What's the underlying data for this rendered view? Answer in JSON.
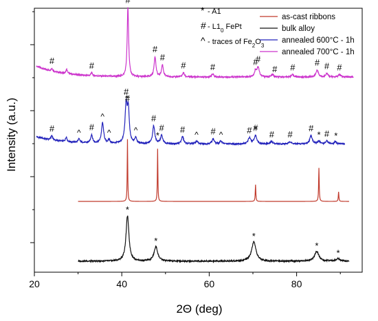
{
  "chart_data": {
    "type": "line",
    "xlabel": "2Θ (deg)",
    "ylabel": "Intensity (a.u.)",
    "xlim": [
      20,
      95
    ],
    "xticks": [
      20,
      40,
      60,
      80
    ],
    "xminor": [
      30,
      50,
      70,
      90
    ],
    "y_tick_count": 4,
    "grid": false,
    "legend_position": "top-right",
    "series": [
      {
        "name": "annealed 700°C - 1h",
        "color": "#cc33cc",
        "offset": 0.77,
        "x_range": [
          20.5,
          93
        ],
        "baseline": 0.045,
        "peaks": [
          [
            24.0,
            0.012,
            0.2
          ],
          [
            27.4,
            0.018,
            0.2
          ],
          [
            33.1,
            0.012,
            0.2
          ],
          [
            41.4,
            0.29,
            0.2
          ],
          [
            47.6,
            0.085,
            0.25
          ],
          [
            49.3,
            0.05,
            0.25
          ],
          [
            54.1,
            0.018,
            0.25
          ],
          [
            60.8,
            0.012,
            0.3
          ],
          [
            70.6,
            0.025,
            0.3
          ],
          [
            71.2,
            0.04,
            0.3
          ],
          [
            74.5,
            0.01,
            0.3
          ],
          [
            79.1,
            0.01,
            0.3
          ],
          [
            84.7,
            0.03,
            0.3
          ],
          [
            86.9,
            0.015,
            0.3
          ],
          [
            89.8,
            0.01,
            0.3
          ]
        ]
      },
      {
        "name": "annealed 600°C - 1h",
        "color": "#2222bb",
        "offset": 0.49,
        "x_range": [
          20.5,
          91
        ],
        "baseline": 0.03,
        "peaks": [
          [
            24.0,
            0.018,
            0.25
          ],
          [
            27.3,
            0.02,
            0.2
          ],
          [
            30.2,
            0.015,
            0.25
          ],
          [
            33.1,
            0.035,
            0.25
          ],
          [
            35.6,
            0.085,
            0.3
          ],
          [
            37.1,
            0.015,
            0.25
          ],
          [
            41.0,
            0.16,
            0.3
          ],
          [
            41.5,
            0.13,
            0.25
          ],
          [
            43.2,
            0.025,
            0.25
          ],
          [
            47.3,
            0.075,
            0.3
          ],
          [
            49.1,
            0.035,
            0.3
          ],
          [
            53.9,
            0.03,
            0.3
          ],
          [
            57.1,
            0.012,
            0.3
          ],
          [
            60.9,
            0.022,
            0.3
          ],
          [
            62.7,
            0.012,
            0.3
          ],
          [
            69.2,
            0.025,
            0.35
          ],
          [
            70.6,
            0.035,
            0.35
          ],
          [
            74.3,
            0.01,
            0.3
          ],
          [
            78.5,
            0.01,
            0.3
          ],
          [
            83.3,
            0.035,
            0.35
          ],
          [
            85.1,
            0.012,
            0.3
          ],
          [
            86.9,
            0.012,
            0.3
          ],
          [
            88.9,
            0.01,
            0.3
          ]
        ]
      },
      {
        "name": "as-cast ribbons",
        "color": "#c0392b",
        "offset": 0.25,
        "x_range": [
          30,
          92
        ],
        "baseline": 0.0,
        "peaks": [
          [
            41.3,
            0.26,
            0.07
          ],
          [
            48.2,
            0.22,
            0.07
          ],
          [
            70.6,
            0.07,
            0.08
          ],
          [
            85.1,
            0.14,
            0.08
          ],
          [
            89.6,
            0.04,
            0.08
          ]
        ]
      },
      {
        "name": "bulk alloy",
        "color": "#111111",
        "offset": 0.0,
        "x_range": [
          30,
          92
        ],
        "baseline": 0.0,
        "peaks": [
          [
            41.3,
            0.19,
            0.4
          ],
          [
            47.8,
            0.06,
            0.5
          ],
          [
            70.2,
            0.08,
            0.6
          ],
          [
            84.6,
            0.04,
            0.6
          ],
          [
            89.5,
            0.01,
            0.6
          ]
        ]
      }
    ],
    "annotations": [
      {
        "symbol": "#",
        "series": 0,
        "positions": [
          24.0,
          33.1,
          41.4,
          47.6,
          49.3,
          54.1,
          60.8,
          70.6,
          71.2,
          75.0,
          79.1,
          84.7,
          86.9,
          89.8
        ]
      },
      {
        "symbol": "#",
        "series": 1,
        "positions": [
          24.0,
          33.1,
          41.0,
          41.3,
          47.3,
          49.1,
          53.9,
          60.9,
          69.2,
          70.6,
          74.3,
          78.5,
          83.3,
          86.9
        ]
      },
      {
        "symbol": "^",
        "series": 1,
        "positions": [
          30.2,
          35.6,
          37.1,
          43.2,
          57.1,
          62.7
        ]
      },
      {
        "symbol": "*",
        "series": 1,
        "positions": [
          41.2,
          48.2,
          70.6,
          85.1,
          89.0
        ]
      },
      {
        "symbol": "*",
        "series": 3,
        "positions": [
          41.3,
          47.8,
          70.2,
          84.6,
          89.5
        ]
      }
    ],
    "phase_key": [
      {
        "symbol": "*",
        "text": " - A1"
      },
      {
        "symbol": "#",
        "text": " - L1",
        "sub": "0",
        "tail": " FePt"
      },
      {
        "symbol": "^",
        "text": " - traces of Fe",
        "sub": "2",
        "tail": "O",
        "sub2": "3"
      }
    ]
  }
}
